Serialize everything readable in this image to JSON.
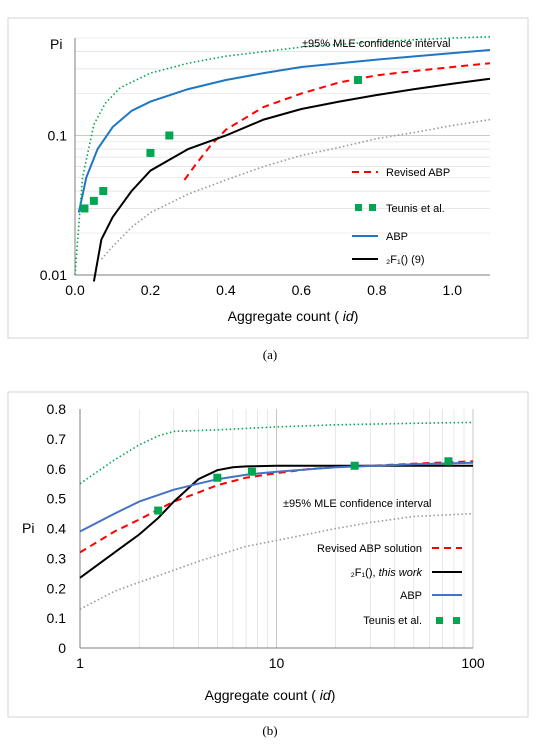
{
  "chart_data": [
    {
      "panel": "a",
      "type": "line",
      "caption": "(a)",
      "title": "",
      "xlabel": "Aggregate count (id)",
      "ylabel": "Pi",
      "xlim": [
        0,
        1.1
      ],
      "ylim": [
        0.01,
        0.5
      ],
      "x_scale": "linear",
      "y_scale": "log",
      "x_ticks": [
        "0.0",
        "0.2",
        "0.4",
        "0.6",
        "0.8",
        "1.0"
      ],
      "y_ticks": [
        "0.01",
        "0.1"
      ],
      "grid": true,
      "legend_position": "right",
      "annotation": "±95% MLE confidence interval",
      "series": [
        {
          "name": "Revised ABP",
          "style": "dashed",
          "color": "#ff0000",
          "x": [
            0.29,
            0.32,
            0.36,
            0.4,
            0.5,
            0.6,
            0.7,
            0.8,
            0.9,
            1.0,
            1.1
          ],
          "y": [
            0.048,
            0.062,
            0.085,
            0.11,
            0.16,
            0.2,
            0.24,
            0.27,
            0.29,
            0.31,
            0.33
          ]
        },
        {
          "name": "Teunis et al.",
          "style": "markers",
          "color": "#00a651",
          "x": [
            0.025,
            0.05,
            0.075,
            0.2,
            0.25,
            0.75
          ],
          "y": [
            0.03,
            0.034,
            0.04,
            0.075,
            0.1,
            0.25
          ]
        },
        {
          "name": "ABP",
          "style": "solid",
          "color": "#1f77c4",
          "x": [
            0.01,
            0.03,
            0.06,
            0.1,
            0.15,
            0.2,
            0.3,
            0.4,
            0.5,
            0.6,
            0.8,
            1.0,
            1.1
          ],
          "y": [
            0.028,
            0.05,
            0.08,
            0.115,
            0.15,
            0.175,
            0.215,
            0.25,
            0.28,
            0.31,
            0.35,
            0.39,
            0.41
          ]
        },
        {
          "name": "₂F₁() (9)",
          "style": "solid",
          "color": "#000000",
          "x": [
            0.05,
            0.07,
            0.1,
            0.15,
            0.2,
            0.3,
            0.4,
            0.5,
            0.6,
            0.7,
            0.8,
            0.9,
            1.0,
            1.1
          ],
          "y": [
            0.009,
            0.018,
            0.026,
            0.04,
            0.056,
            0.08,
            0.1,
            0.13,
            0.155,
            0.175,
            0.195,
            0.215,
            0.235,
            0.255
          ]
        },
        {
          "name": "",
          "style": "dotted",
          "color": "#00a651",
          "x": [
            0.0,
            0.02,
            0.05,
            0.08,
            0.12,
            0.2,
            0.3,
            0.4,
            0.6,
            0.8,
            1.0,
            1.1
          ],
          "y": [
            0.01,
            0.05,
            0.12,
            0.17,
            0.22,
            0.28,
            0.33,
            0.37,
            0.43,
            0.47,
            0.5,
            0.51
          ]
        },
        {
          "name": "",
          "style": "dotted",
          "color": "#999999",
          "x": [
            0.07,
            0.1,
            0.15,
            0.2,
            0.3,
            0.4,
            0.5,
            0.6,
            0.7,
            0.8,
            0.9,
            1.0,
            1.1
          ],
          "y": [
            0.013,
            0.016,
            0.022,
            0.028,
            0.038,
            0.048,
            0.06,
            0.072,
            0.082,
            0.095,
            0.105,
            0.118,
            0.13
          ]
        }
      ]
    },
    {
      "panel": "b",
      "type": "line",
      "caption": "(b)",
      "title": "",
      "xlabel": "Aggregate count (id)",
      "ylabel": "Pi",
      "xlim": [
        1,
        100
      ],
      "ylim": [
        0,
        0.8
      ],
      "x_scale": "log",
      "y_scale": "linear",
      "x_ticks": [
        "1",
        "10",
        "100"
      ],
      "y_ticks": [
        "0",
        "0.1",
        "0.2",
        "0.3",
        "0.4",
        "0.5",
        "0.6",
        "0.7",
        "0.8"
      ],
      "grid": true,
      "legend_position": "right",
      "annotation": "±95% MLE confidence interval",
      "series": [
        {
          "name": "Revised ABP solution",
          "style": "dashed",
          "color": "#ff0000",
          "x": [
            1,
            1.5,
            2,
            3,
            4,
            5,
            7,
            10,
            15,
            20,
            30,
            50,
            70,
            100
          ],
          "y": [
            0.32,
            0.39,
            0.43,
            0.49,
            0.52,
            0.545,
            0.57,
            0.585,
            0.6,
            0.605,
            0.61,
            0.617,
            0.621,
            0.625
          ]
        },
        {
          "name": "₂F₁(), this work",
          "style": "solid",
          "color": "#000000",
          "x": [
            1,
            1.5,
            2,
            2.5,
            3,
            4,
            5,
            6,
            7,
            10,
            20,
            50,
            100
          ],
          "y": [
            0.235,
            0.32,
            0.38,
            0.435,
            0.49,
            0.565,
            0.595,
            0.605,
            0.608,
            0.61,
            0.61,
            0.61,
            0.61
          ]
        },
        {
          "name": "ABP",
          "style": "solid",
          "color": "#4472c4",
          "x": [
            1,
            1.5,
            2,
            3,
            4,
            5,
            7,
            10,
            20,
            50,
            100
          ],
          "y": [
            0.39,
            0.45,
            0.49,
            0.53,
            0.55,
            0.565,
            0.58,
            0.59,
            0.605,
            0.615,
            0.62
          ]
        },
        {
          "name": "Teunis et al.",
          "style": "markers",
          "color": "#00a651",
          "x": [
            2.5,
            5,
            7.5,
            25,
            75
          ],
          "y": [
            0.46,
            0.57,
            0.59,
            0.61,
            0.625
          ]
        },
        {
          "name": "",
          "style": "dotted",
          "color": "#00a651",
          "x": [
            1,
            1.5,
            2,
            2.5,
            3,
            4,
            5,
            10,
            20,
            50,
            100
          ],
          "y": [
            0.55,
            0.63,
            0.68,
            0.71,
            0.725,
            0.728,
            0.73,
            0.74,
            0.747,
            0.752,
            0.755
          ]
        },
        {
          "name": "",
          "style": "dotted",
          "color": "#999999",
          "x": [
            1,
            1.5,
            2,
            3,
            4,
            5,
            7,
            10,
            20,
            30,
            50,
            70,
            100
          ],
          "y": [
            0.13,
            0.19,
            0.22,
            0.26,
            0.29,
            0.31,
            0.34,
            0.36,
            0.4,
            0.42,
            0.44,
            0.445,
            0.45
          ]
        }
      ]
    }
  ]
}
